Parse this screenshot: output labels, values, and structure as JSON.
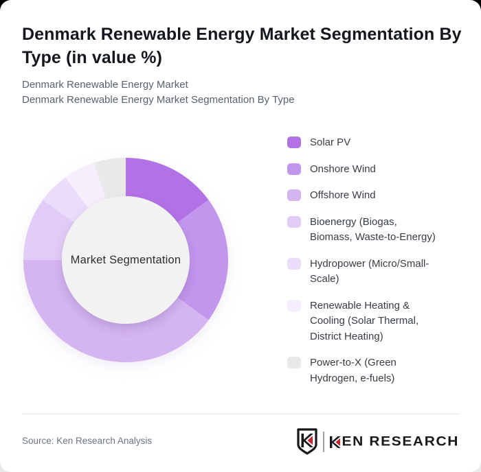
{
  "page": {
    "title": "Denmark Renewable Energy Market Segmentation By Type (in value %)",
    "subtitle_line1": "Denmark Renewable Energy Market",
    "subtitle_line2": "Denmark Renewable Energy Market Segmentation By Type"
  },
  "chart_data": {
    "type": "pie",
    "variant": "donut",
    "title": "Denmark Renewable Energy Market Segmentation By Type (in value %)",
    "center_label": "Market Segmentation",
    "legend_position": "right",
    "start_angle_deg": 0,
    "direction": "clockwise",
    "unit": "value %",
    "series": [
      {
        "label": "Solar PV",
        "value": 15,
        "color": "#b172e6"
      },
      {
        "label": "Onshore Wind",
        "value": 20,
        "color": "#c396ee"
      },
      {
        "label": "Offshore Wind",
        "value": 40,
        "color": "#d5b4f2"
      },
      {
        "label": "Bioenergy (Biogas, Biomass, Waste-to-Energy)",
        "value": 10,
        "color": "#e1ccf7"
      },
      {
        "label": "Hydropower (Micro/Small-Scale)",
        "value": 5,
        "color": "#ebdcfa"
      },
      {
        "label": "Renewable Heating & Cooling (Solar Thermal, District Heating)",
        "value": 5,
        "color": "#f5eefc"
      },
      {
        "label": "Power-to-X (Green Hydrogen, e-fuels)",
        "value": 5,
        "color": "#e9e9ea"
      }
    ]
  },
  "footer": {
    "source": "Source: Ken Research Analysis",
    "logo": {
      "name": "ken-research-logo",
      "rest_text": "EN RESEARCH",
      "accent_color": "#c9252c",
      "ink_color": "#17181c"
    }
  }
}
